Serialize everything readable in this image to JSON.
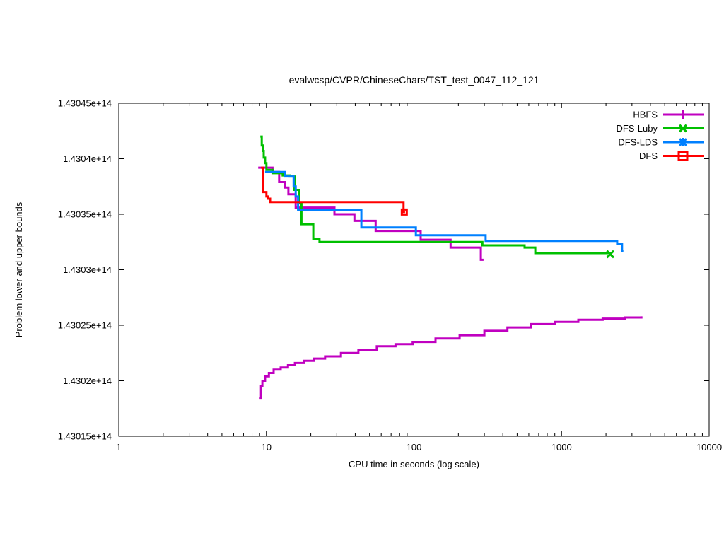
{
  "chart_data": {
    "type": "line",
    "render_style": "steps",
    "title": "evalwcsp/CVPR/ChineseChars/TST_test_0047_112_121",
    "xlabel": "CPU time in seconds (log scale)",
    "ylabel": "Problem lower and upper bounds",
    "x_scale": "log",
    "xlim": [
      1,
      10000
    ],
    "x_ticks": [
      {
        "value": 1,
        "label": "1"
      },
      {
        "value": 10,
        "label": "10"
      },
      {
        "value": 100,
        "label": "100"
      },
      {
        "value": 1000,
        "label": "1000"
      },
      {
        "value": 10000,
        "label": "10000"
      }
    ],
    "x_minor_ticks_per_decade": [
      2,
      3,
      4,
      5,
      6,
      7,
      8,
      9
    ],
    "y_unit": "1e9",
    "ylim_1e9": [
      143015,
      143045
    ],
    "y_ticks": [
      {
        "value_1e9": 143015,
        "label": "1.43015e+14"
      },
      {
        "value_1e9": 143020,
        "label": "1.4302e+14"
      },
      {
        "value_1e9": 143025,
        "label": "1.43025e+14"
      },
      {
        "value_1e9": 143030,
        "label": "1.4303e+14"
      },
      {
        "value_1e9": 143035,
        "label": "1.43035e+14"
      },
      {
        "value_1e9": 143040,
        "label": "1.4304e+14"
      },
      {
        "value_1e9": 143045,
        "label": "1.43045e+14"
      }
    ],
    "grid": false,
    "legend_position": "top-right-inside",
    "legend_order": [
      "HBFS",
      "DFS-Luby",
      "DFS-LDS",
      "DFS"
    ],
    "series": [
      {
        "name": "HBFS",
        "color": "#C000C0",
        "marker": "plus",
        "curves": [
          {
            "role": "upper-bound",
            "points": [
              [
                8.8,
                143039.2
              ],
              [
                11.0,
                143038.8
              ],
              [
                12.2,
                143037.9
              ],
              [
                13.4,
                143037.4
              ],
              [
                14.1,
                143036.8
              ],
              [
                15.8,
                143035.6
              ],
              [
                28.9,
                143035.0
              ],
              [
                39.5,
                143034.4
              ],
              [
                55.0,
                143033.5
              ],
              [
                111.0,
                143032.7
              ],
              [
                177.0,
                143032.0
              ],
              [
                284.0,
                143030.9
              ],
              [
                296.0,
                143030.9
              ]
            ]
          },
          {
            "role": "lower-bound",
            "points": [
              [
                9.0,
                143018.4
              ],
              [
                9.2,
                143019.5
              ],
              [
                9.4,
                143020.0
              ],
              [
                9.8,
                143020.4
              ],
              [
                10.4,
                143020.7
              ],
              [
                11.2,
                143021.0
              ],
              [
                12.5,
                143021.2
              ],
              [
                14.0,
                143021.4
              ],
              [
                15.6,
                143021.6
              ],
              [
                18.0,
                143021.8
              ],
              [
                21.0,
                143022.0
              ],
              [
                25.0,
                143022.2
              ],
              [
                32.0,
                143022.5
              ],
              [
                42.0,
                143022.8
              ],
              [
                56.0,
                143023.1
              ],
              [
                75.0,
                143023.3
              ],
              [
                98.0,
                143023.5
              ],
              [
                140.0,
                143023.8
              ],
              [
                204.0,
                143024.1
              ],
              [
                300.0,
                143024.5
              ],
              [
                430.0,
                143024.8
              ],
              [
                620.0,
                143025.1
              ],
              [
                900.0,
                143025.3
              ],
              [
                1300.0,
                143025.5
              ],
              [
                1900.0,
                143025.6
              ],
              [
                2700.0,
                143025.7
              ],
              [
                3475.0,
                143025.8
              ]
            ]
          }
        ],
        "point_markers": []
      },
      {
        "name": "DFS-Luby",
        "color": "#00C000",
        "marker": "cross",
        "curves": [
          {
            "role": "upper-bound",
            "points": [
              [
                9.1,
                143042.0
              ],
              [
                9.3,
                143041.2
              ],
              [
                9.5,
                143040.7
              ],
              [
                9.6,
                143040.1
              ],
              [
                9.8,
                143039.6
              ],
              [
                10.0,
                143039.0
              ],
              [
                11.0,
                143038.7
              ],
              [
                12.9,
                143038.5
              ],
              [
                14.4,
                143038.4
              ],
              [
                15.5,
                143037.2
              ],
              [
                16.7,
                143036.0
              ],
              [
                17.3,
                143034.1
              ],
              [
                20.8,
                143032.8
              ],
              [
                22.9,
                143032.5
              ],
              [
                291.0,
                143032.2
              ],
              [
                562.0,
                143032.0
              ],
              [
                664.0,
                143031.5
              ],
              [
                2140.0,
                143031.4
              ]
            ]
          }
        ],
        "point_markers": [
          {
            "x": 2140.0,
            "y_1e9": 143031.4,
            "type": "cross"
          }
        ]
      },
      {
        "name": "DFS-LDS",
        "color": "#0080FF",
        "marker": "asterisk",
        "curves": [
          {
            "role": "upper-bound",
            "points": [
              [
                9.8,
                143038.8
              ],
              [
                13.4,
                143038.4
              ],
              [
                15.3,
                143037.5
              ],
              [
                15.8,
                143036.6
              ],
              [
                16.4,
                143035.4
              ],
              [
                44.0,
                143033.8
              ],
              [
                103.0,
                143033.1
              ],
              [
                306.0,
                143032.6
              ],
              [
                2380.0,
                143032.3
              ],
              [
                2570.0,
                143031.7
              ],
              [
                2625.0,
                143031.7
              ]
            ]
          }
        ],
        "point_markers": []
      },
      {
        "name": "DFS",
        "color": "#FF0000",
        "marker": "square",
        "curves": [
          {
            "role": "upper-bound",
            "points": [
              [
                9.2,
                143039.2
              ],
              [
                9.5,
                143037.0
              ],
              [
                10.0,
                143036.6
              ],
              [
                10.2,
                143036.4
              ],
              [
                10.6,
                143036.1
              ],
              [
                85.0,
                143035.2
              ],
              [
                87.0,
                143035.2
              ]
            ]
          }
        ],
        "point_markers": [
          {
            "x": 86.0,
            "y_1e9": 143035.2,
            "type": "square",
            "small": true
          }
        ]
      }
    ]
  }
}
